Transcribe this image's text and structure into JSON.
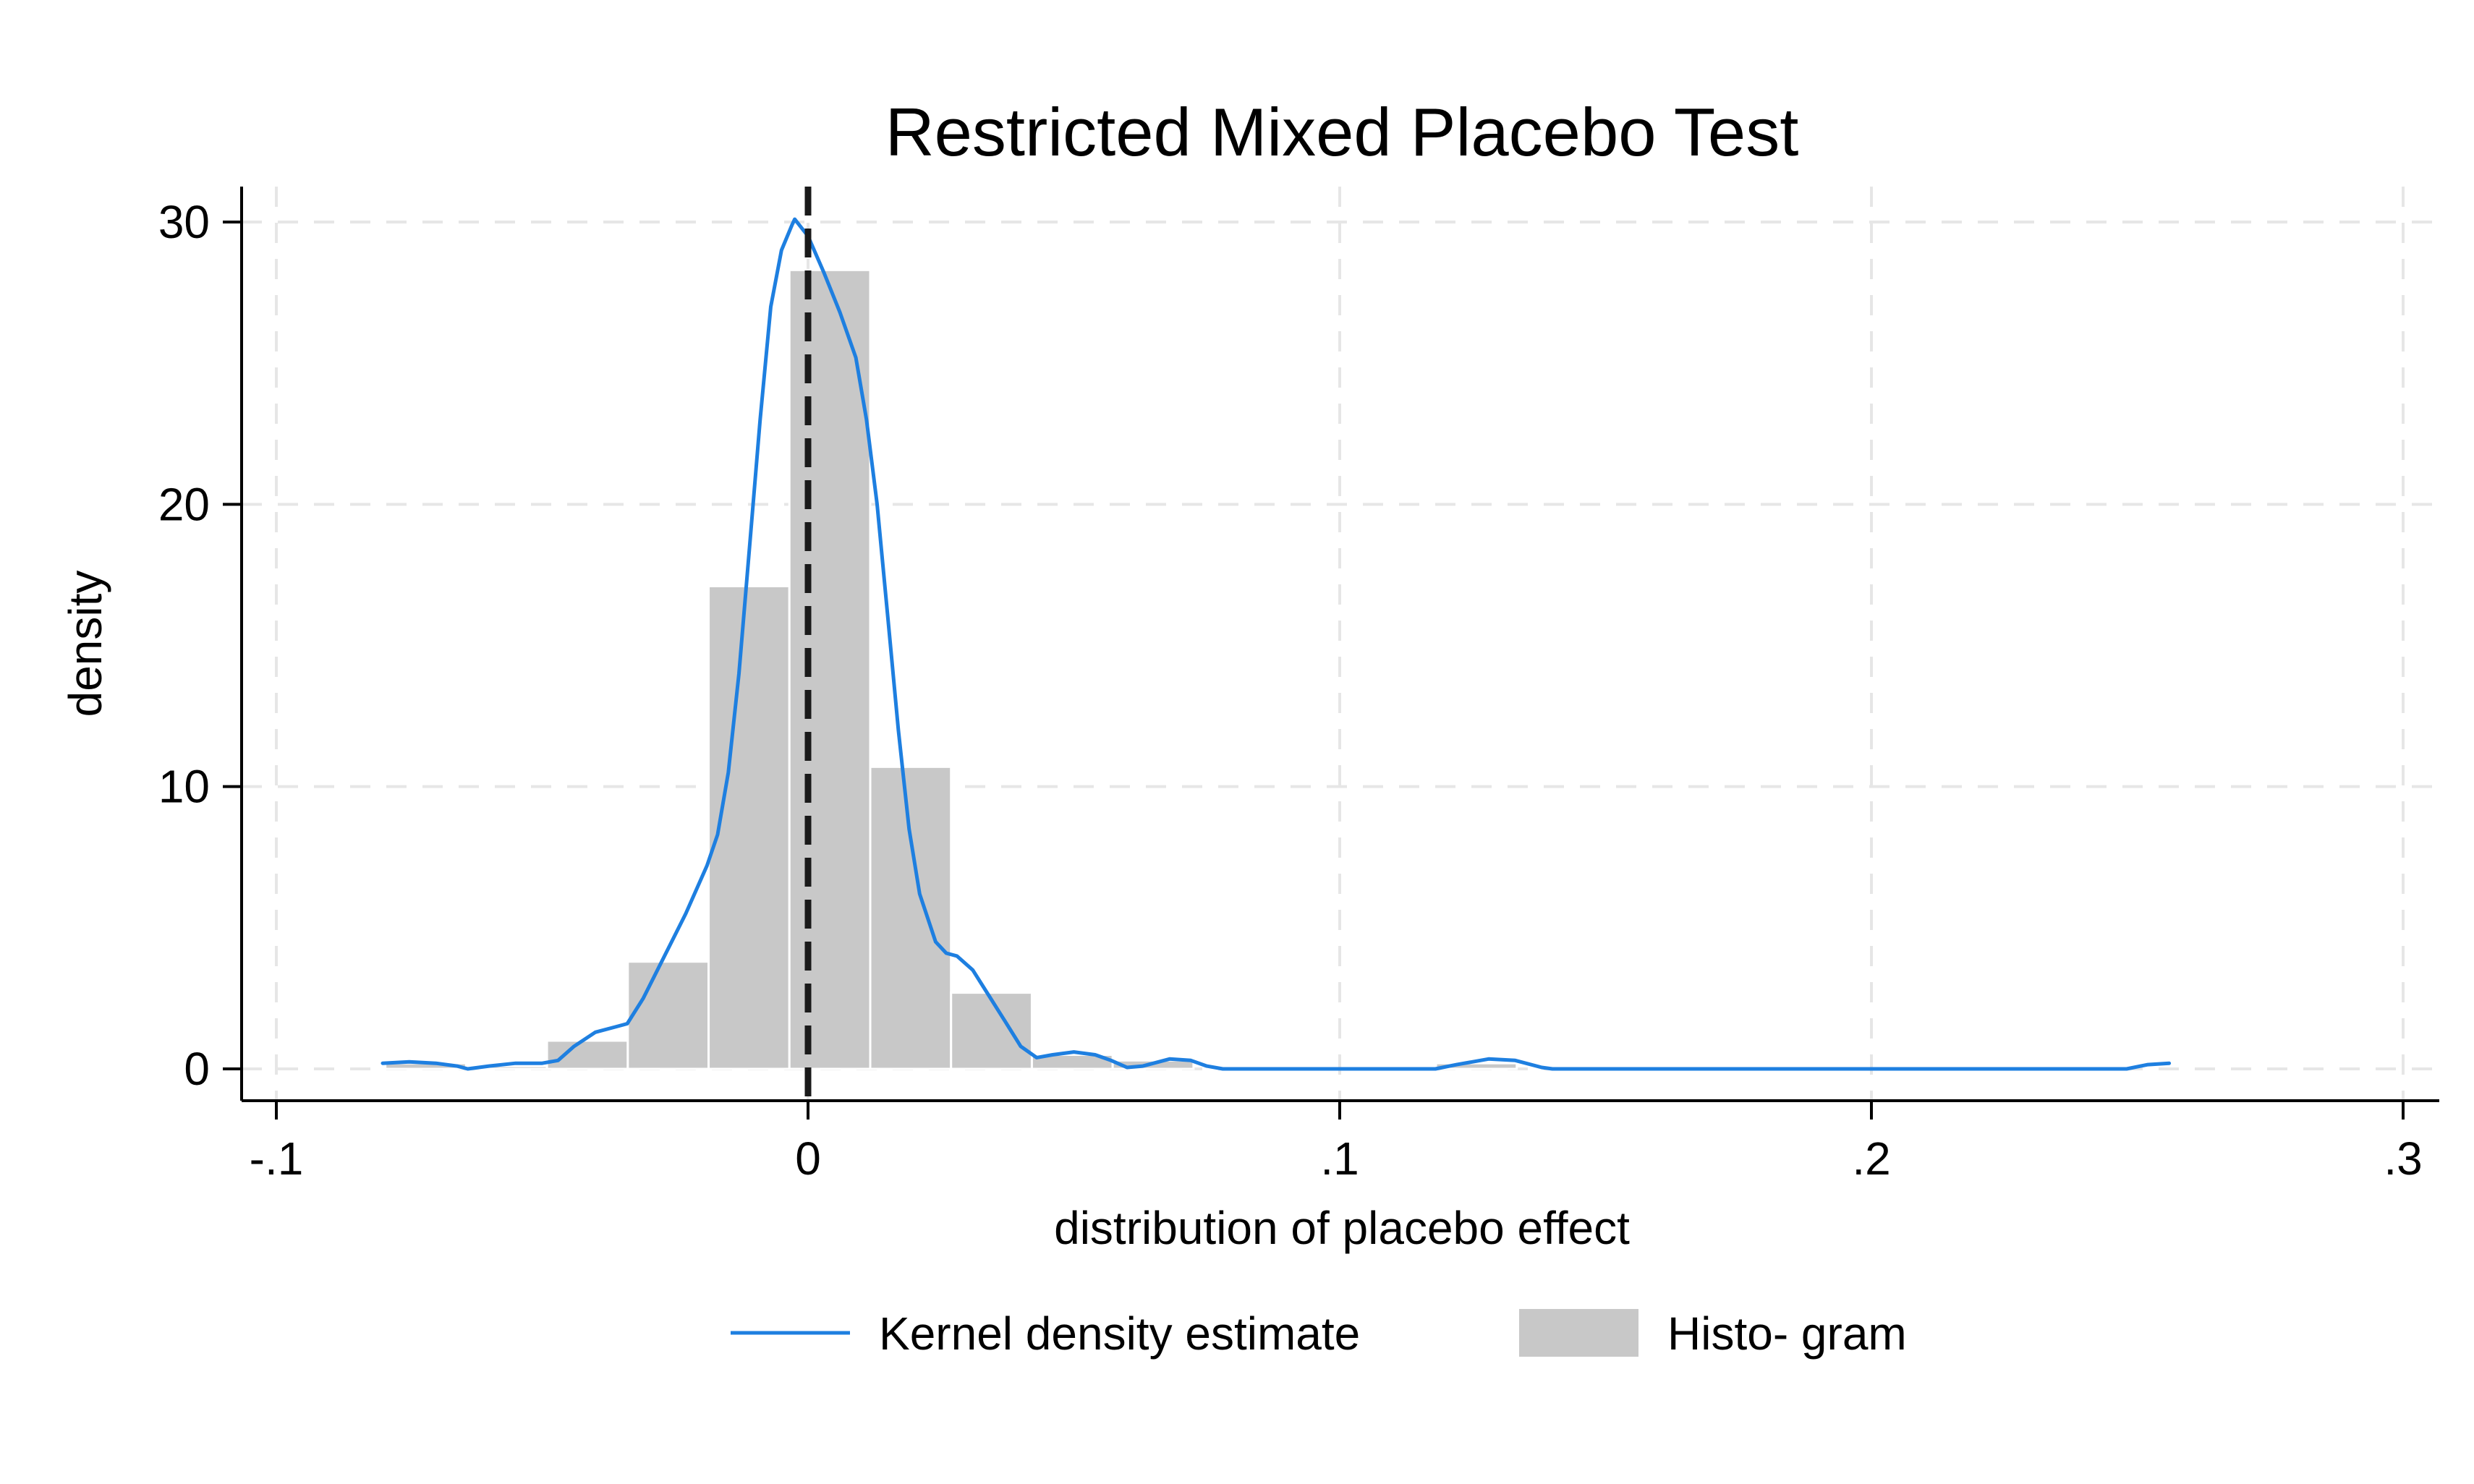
{
  "chart_data": {
    "type": "bar",
    "title": "Restricted Mixed Placebo Test",
    "xlabel": "distribution of placebo effect",
    "ylabel": "density",
    "xlim": [
      -0.1,
      0.3
    ],
    "ylim": [
      0,
      30
    ],
    "x_ticks": [
      {
        "value": -0.1,
        "label": "-.1"
      },
      {
        "value": 0,
        "label": "0"
      },
      {
        "value": 0.1,
        "label": ".1"
      },
      {
        "value": 0.2,
        "label": ".2"
      },
      {
        "value": 0.3,
        "label": ".3"
      }
    ],
    "y_ticks": [
      {
        "value": 0,
        "label": "0"
      },
      {
        "value": 10,
        "label": "10"
      },
      {
        "value": 20,
        "label": "20"
      },
      {
        "value": 30,
        "label": "30"
      }
    ],
    "grid": true,
    "reference_line": {
      "x": 0,
      "style": "dashed",
      "color": "#1a1a1a"
    },
    "histogram": {
      "name": "Histo- gram",
      "color": "#c8c8c8",
      "bins": [
        {
          "x0": -0.0795,
          "x1": -0.0643,
          "value": 0.2
        },
        {
          "x0": -0.0643,
          "x1": -0.0491,
          "value": 0.1
        },
        {
          "x0": -0.0491,
          "x1": -0.0339,
          "value": 1.0
        },
        {
          "x0": -0.0339,
          "x1": -0.0187,
          "value": 3.8
        },
        {
          "x0": -0.0187,
          "x1": -0.0035,
          "value": 17.1
        },
        {
          "x0": -0.0035,
          "x1": 0.0117,
          "value": 28.3
        },
        {
          "x0": 0.0117,
          "x1": 0.0269,
          "value": 10.7
        },
        {
          "x0": 0.0269,
          "x1": 0.0421,
          "value": 2.7
        },
        {
          "x0": 0.0421,
          "x1": 0.0573,
          "value": 0.5
        },
        {
          "x0": 0.0573,
          "x1": 0.0725,
          "value": 0.3
        },
        {
          "x0": 0.1181,
          "x1": 0.1333,
          "value": 0.2
        }
      ]
    },
    "kde": {
      "name": "Kernel density estimate",
      "color": "#1e7fe0",
      "points": [
        [
          -0.08,
          0.2
        ],
        [
          -0.075,
          0.25
        ],
        [
          -0.07,
          0.2
        ],
        [
          -0.066,
          0.1
        ],
        [
          -0.064,
          0.0
        ],
        [
          -0.06,
          0.1
        ],
        [
          -0.055,
          0.2
        ],
        [
          -0.05,
          0.2
        ],
        [
          -0.047,
          0.3
        ],
        [
          -0.044,
          0.8
        ],
        [
          -0.04,
          1.3
        ],
        [
          -0.036,
          1.5
        ],
        [
          -0.034,
          1.6
        ],
        [
          -0.031,
          2.5
        ],
        [
          -0.027,
          4.0
        ],
        [
          -0.023,
          5.5
        ],
        [
          -0.019,
          7.2
        ],
        [
          -0.017,
          8.3
        ],
        [
          -0.015,
          10.5
        ],
        [
          -0.013,
          14.0
        ],
        [
          -0.011,
          18.5
        ],
        [
          -0.009,
          23.0
        ],
        [
          -0.007,
          27.0
        ],
        [
          -0.005,
          29.0
        ],
        [
          -0.003,
          29.9
        ],
        [
          -0.0025,
          30.1
        ],
        [
          0.0,
          29.5
        ],
        [
          0.003,
          28.2
        ],
        [
          0.006,
          26.8
        ],
        [
          0.009,
          25.2
        ],
        [
          0.011,
          23.0
        ],
        [
          0.013,
          20.0
        ],
        [
          0.015,
          16.0
        ],
        [
          0.017,
          12.0
        ],
        [
          0.019,
          8.5
        ],
        [
          0.021,
          6.2
        ],
        [
          0.024,
          4.5
        ],
        [
          0.026,
          4.1
        ],
        [
          0.028,
          4.0
        ],
        [
          0.031,
          3.5
        ],
        [
          0.034,
          2.6
        ],
        [
          0.037,
          1.7
        ],
        [
          0.04,
          0.8
        ],
        [
          0.043,
          0.4
        ],
        [
          0.046,
          0.5
        ],
        [
          0.05,
          0.6
        ],
        [
          0.054,
          0.5
        ],
        [
          0.057,
          0.3
        ],
        [
          0.06,
          0.05
        ],
        [
          0.063,
          0.1
        ],
        [
          0.068,
          0.35
        ],
        [
          0.072,
          0.3
        ],
        [
          0.075,
          0.1
        ],
        [
          0.078,
          0.0
        ],
        [
          0.1,
          0.0
        ],
        [
          0.118,
          0.0
        ],
        [
          0.122,
          0.15
        ],
        [
          0.128,
          0.35
        ],
        [
          0.133,
          0.3
        ],
        [
          0.138,
          0.05
        ],
        [
          0.14,
          0.0
        ],
        [
          0.2,
          0.0
        ],
        [
          0.248,
          0.0
        ],
        [
          0.252,
          0.15
        ],
        [
          0.256,
          0.2
        ]
      ]
    },
    "legend": {
      "placement": "bottom",
      "entries": [
        {
          "label": "Kernel density estimate",
          "kind": "line",
          "color": "#1e7fe0"
        },
        {
          "label": "Histo- gram",
          "kind": "box",
          "color": "#c8c8c8"
        }
      ]
    }
  }
}
